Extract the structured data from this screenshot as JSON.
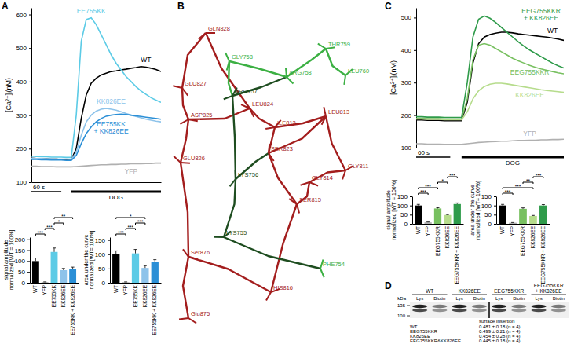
{
  "panel_labels": [
    "A",
    "B",
    "C",
    "D"
  ],
  "chart_data": [
    {
      "type": "line",
      "ylabel": "[Ca²⁺]ᵢ(nM)",
      "x": [
        0,
        10,
        20,
        30,
        40,
        50,
        60,
        70,
        80,
        90,
        100,
        110,
        120,
        130,
        140,
        150,
        160,
        170,
        180,
        190,
        200,
        210,
        220,
        230,
        240,
        250,
        260
      ],
      "xlim": [
        0,
        260
      ],
      "ylim": [
        100,
        620
      ],
      "yticks": [
        100,
        200,
        300,
        400,
        500,
        600
      ],
      "tick_labels": "y",
      "series": [
        {
          "name": "WT",
          "color": "#000000",
          "values": [
            172,
            171,
            170,
            170,
            169,
            169,
            168,
            168,
            168,
            200,
            290,
            360,
            395,
            410,
            420,
            425,
            430,
            432,
            435,
            437,
            440,
            442,
            445,
            443,
            440,
            436,
            430
          ]
        },
        {
          "name": "EE755KK",
          "color": "#5ccbe6",
          "values": [
            178,
            177,
            176,
            176,
            175,
            175,
            175,
            174,
            174,
            300,
            520,
            585,
            590,
            570,
            540,
            510,
            480,
            455,
            435,
            415,
            400,
            385,
            372,
            362,
            352,
            345,
            338
          ]
        },
        {
          "name": "KK826EE",
          "color": "#8ec3ea",
          "values": [
            172,
            171,
            171,
            170,
            170,
            169,
            169,
            169,
            168,
            190,
            240,
            280,
            300,
            312,
            318,
            320,
            318,
            315,
            310,
            305,
            300,
            296,
            292,
            288,
            285,
            282,
            280
          ]
        },
        {
          "name": "EE755KK + KK826EE",
          "color": "#2b8fd6",
          "values": [
            168,
            168,
            167,
            167,
            166,
            166,
            166,
            165,
            165,
            180,
            215,
            245,
            265,
            280,
            290,
            297,
            300,
            302,
            303,
            302,
            300,
            298,
            296,
            294,
            292,
            290,
            288
          ]
        },
        {
          "name": "YFP",
          "color": "#b0b0b0",
          "values": [
            148,
            148,
            147,
            147,
            147,
            146,
            146,
            146,
            146,
            147,
            148,
            149,
            150,
            151,
            152,
            152,
            153,
            153,
            154,
            154,
            155,
            155,
            155,
            156,
            156,
            157,
            157
          ]
        }
      ],
      "scale_bar": {
        "value": 60,
        "label": "60 s"
      },
      "stimulus": {
        "label": "DOG",
        "start": 80,
        "end": 260
      }
    },
    {
      "type": "bar",
      "ylabel": [
        "signal amplitude",
        "normalized [WT = 100%]"
      ],
      "categories": [
        "WT",
        "YFP",
        "EE755KK",
        "KK826EE",
        "EE755KK + KK826EE"
      ],
      "values": [
        100,
        3,
        142,
        58,
        65
      ],
      "errors": [
        14,
        1,
        18,
        8,
        7
      ],
      "colors": [
        "#000000",
        "#b0b0b0",
        "#5ccbe6",
        "#8ec3ea",
        "#2b8fd6"
      ],
      "ylim": [
        0,
        210
      ],
      "yticks": [
        0,
        50,
        100,
        150,
        200
      ],
      "significance": [
        {
          "pair": [
            0,
            1
          ],
          "label": "***"
        },
        {
          "pair": [
            1,
            2
          ],
          "label": "***"
        },
        {
          "pair": [
            2,
            3
          ],
          "label": "*"
        },
        {
          "pair": [
            2,
            4
          ],
          "label": "**"
        }
      ]
    },
    {
      "type": "bar",
      "ylabel": [
        "area under the curve",
        "normalized [WT= 100%]"
      ],
      "categories": [
        "WT",
        "YFP",
        "EE755KK",
        "KK826EE",
        "EE755KK + KK826EE"
      ],
      "values": [
        100,
        2,
        103,
        52,
        72
      ],
      "errors": [
        12,
        1,
        14,
        8,
        9
      ],
      "colors": [
        "#000000",
        "#b0b0b0",
        "#5ccbe6",
        "#8ec3ea",
        "#2b8fd6"
      ],
      "ylim": [
        0,
        160
      ],
      "yticks": [
        0,
        50,
        100,
        150
      ],
      "significance": [
        {
          "pair": [
            0,
            1
          ],
          "label": "***"
        },
        {
          "pair": [
            1,
            2
          ],
          "label": "***"
        },
        {
          "pair": [
            2,
            3
          ],
          "label": "***"
        },
        {
          "pair": [
            0,
            3
          ],
          "label": "*"
        }
      ]
    },
    {
      "type": "line",
      "ylabel": "[Ca²⁺]ᵢ(nM)",
      "x": [
        0,
        10,
        20,
        30,
        40,
        50,
        60,
        70,
        80,
        90,
        100,
        110,
        120,
        130,
        140,
        150,
        160,
        170,
        180,
        190,
        200,
        210,
        220,
        230,
        240,
        250,
        260
      ],
      "xlim": [
        0,
        260
      ],
      "ylim": [
        100,
        530
      ],
      "yticks": [
        100,
        200,
        300,
        400,
        500
      ],
      "tick_labels": "y",
      "series": [
        {
          "name": "WT",
          "color": "#000000",
          "values": [
            185,
            185,
            184,
            184,
            184,
            183,
            183,
            183,
            183,
            240,
            360,
            420,
            440,
            448,
            452,
            455,
            455,
            453,
            450,
            448,
            446,
            444,
            442,
            440,
            437,
            434,
            430
          ]
        },
        {
          "name": "EEG755KKR",
          "color": "#78c060",
          "values": [
            190,
            190,
            189,
            189,
            189,
            188,
            188,
            188,
            188,
            250,
            370,
            415,
            420,
            415,
            405,
            395,
            385,
            375,
            367,
            360,
            353,
            347,
            342,
            338,
            334,
            330,
            327
          ]
        },
        {
          "name": "KK826EE",
          "color": "#b6dc8c",
          "values": [
            188,
            188,
            187,
            187,
            187,
            186,
            186,
            186,
            186,
            210,
            250,
            275,
            288,
            295,
            298,
            298,
            296,
            293,
            290,
            287,
            284,
            281,
            278,
            276,
            274,
            272,
            270
          ]
        },
        {
          "name": "EEG755KKR + KK826EE",
          "color": "#2f9b4a",
          "values": [
            195,
            195,
            194,
            194,
            194,
            193,
            193,
            193,
            193,
            300,
            440,
            495,
            505,
            498,
            485,
            470,
            455,
            440,
            425,
            412,
            400,
            390,
            380,
            370,
            360,
            352,
            345
          ]
        },
        {
          "name": "YFP",
          "color": "#b0b0b0",
          "values": [
            112,
            112,
            111,
            111,
            111,
            110,
            110,
            110,
            110,
            112,
            114,
            116,
            117,
            118,
            119,
            120,
            120,
            121,
            122,
            122,
            123,
            123,
            124,
            124,
            125,
            125,
            126
          ]
        }
      ],
      "scale_bar": {
        "value": 60,
        "label": "60 s"
      },
      "stimulus": {
        "label": "DOG",
        "start": 80,
        "end": 260
      }
    },
    {
      "type": "bar",
      "ylabel": [
        "signal amplitude",
        "normalized [WT = 100%]"
      ],
      "categories": [
        "WT",
        "YFP",
        "EEG755KKR",
        "KK826EE",
        "EEG755KKR + KK826EE"
      ],
      "values": [
        100,
        8,
        84,
        48,
        108
      ],
      "errors": [
        6,
        2,
        4,
        3,
        6
      ],
      "colors": [
        "#000000",
        "#b0b0b0",
        "#78c060",
        "#b6dc8c",
        "#2f9b4a"
      ],
      "ylim": [
        0,
        150
      ],
      "yticks": [
        0,
        50,
        100,
        150
      ],
      "significance": [
        {
          "pair": [
            0,
            1
          ],
          "label": "***"
        },
        {
          "pair": [
            0,
            2
          ],
          "label": "***"
        },
        {
          "pair": [
            2,
            3
          ],
          "label": "*"
        },
        {
          "pair": [
            3,
            4
          ],
          "label": "***"
        }
      ]
    },
    {
      "type": "bar",
      "ylabel": [
        "area under the curve",
        "normalized [WT= 100%]"
      ],
      "categories": [
        "WT",
        "YFP",
        "EEG755KKR",
        "KK826EE",
        "EEG755KKR + KK826EE"
      ],
      "values": [
        100,
        6,
        82,
        43,
        100
      ],
      "errors": [
        6,
        1,
        5,
        3,
        5
      ],
      "colors": [
        "#000000",
        "#b0b0b0",
        "#78c060",
        "#b6dc8c",
        "#2f9b4a"
      ],
      "ylim": [
        0,
        150
      ],
      "yticks": [
        0,
        50,
        100,
        150
      ],
      "significance": [
        {
          "pair": [
            0,
            1
          ],
          "label": "***"
        },
        {
          "pair": [
            0,
            3
          ],
          "label": "***"
        },
        {
          "pair": [
            2,
            3
          ],
          "label": "**"
        },
        {
          "pair": [
            3,
            4
          ],
          "label": "***"
        }
      ]
    }
  ],
  "structure": {
    "residues": [
      {
        "label": "GLN828",
        "color": "#a31d1d"
      },
      {
        "label": "GLU827",
        "color": "#a31d1d"
      },
      {
        "label": "GLY758",
        "color": "#3cb043"
      },
      {
        "label": "ARG757",
        "color": "#1e4d20"
      },
      {
        "label": "THR759",
        "color": "#3cb043"
      },
      {
        "label": "ARG758",
        "color": "#3cb043"
      },
      {
        "label": "LEU760",
        "color": "#3cb043"
      },
      {
        "label": "ASP825",
        "color": "#a31d1d"
      },
      {
        "label": "LEU824",
        "color": "#a31d1d"
      },
      {
        "label": "LEU813",
        "color": "#a31d1d"
      },
      {
        "label": "ILE812",
        "color": "#a31d1d"
      },
      {
        "label": "GLU826",
        "color": "#a31d1d"
      },
      {
        "label": "SER823",
        "color": "#a31d1d"
      },
      {
        "label": "GLY811",
        "color": "#a31d1d"
      },
      {
        "label": "GLY814",
        "color": "#a31d1d"
      },
      {
        "label": "SER815",
        "color": "#a31d1d"
      },
      {
        "label": "LYS756",
        "color": "#1e4d20"
      },
      {
        "label": "LYS755",
        "color": "#1e4d20"
      },
      {
        "label": "Ser876",
        "color": "#a31d1d"
      },
      {
        "label": "PHE754",
        "color": "#3cb043"
      },
      {
        "label": "HIS816",
        "color": "#a31d1d"
      },
      {
        "label": "Glu875",
        "color": "#a31d1d"
      }
    ]
  },
  "blot": {
    "groups": [
      "WT",
      "KK826EE",
      "EEG755KKR",
      "EEG755KKR + KK826EE"
    ],
    "lanes": [
      "Lys",
      "Biotin"
    ],
    "unit": "kDa",
    "markers": [
      135,
      100
    ]
  },
  "surface_insertion": {
    "title": "surface insertion",
    "rows": [
      [
        "WT",
        "0.481 ± 0.18 (n = 4)"
      ],
      [
        "EEG755KKR",
        "0.499 ± 0.21 (n = 4)"
      ],
      [
        "KK826EE",
        "0.454 ± 0.28 (n = 4)"
      ],
      [
        "EEG755KKR&KK826EE",
        "0.445 ± 0.18 (n = 4)"
      ]
    ]
  }
}
